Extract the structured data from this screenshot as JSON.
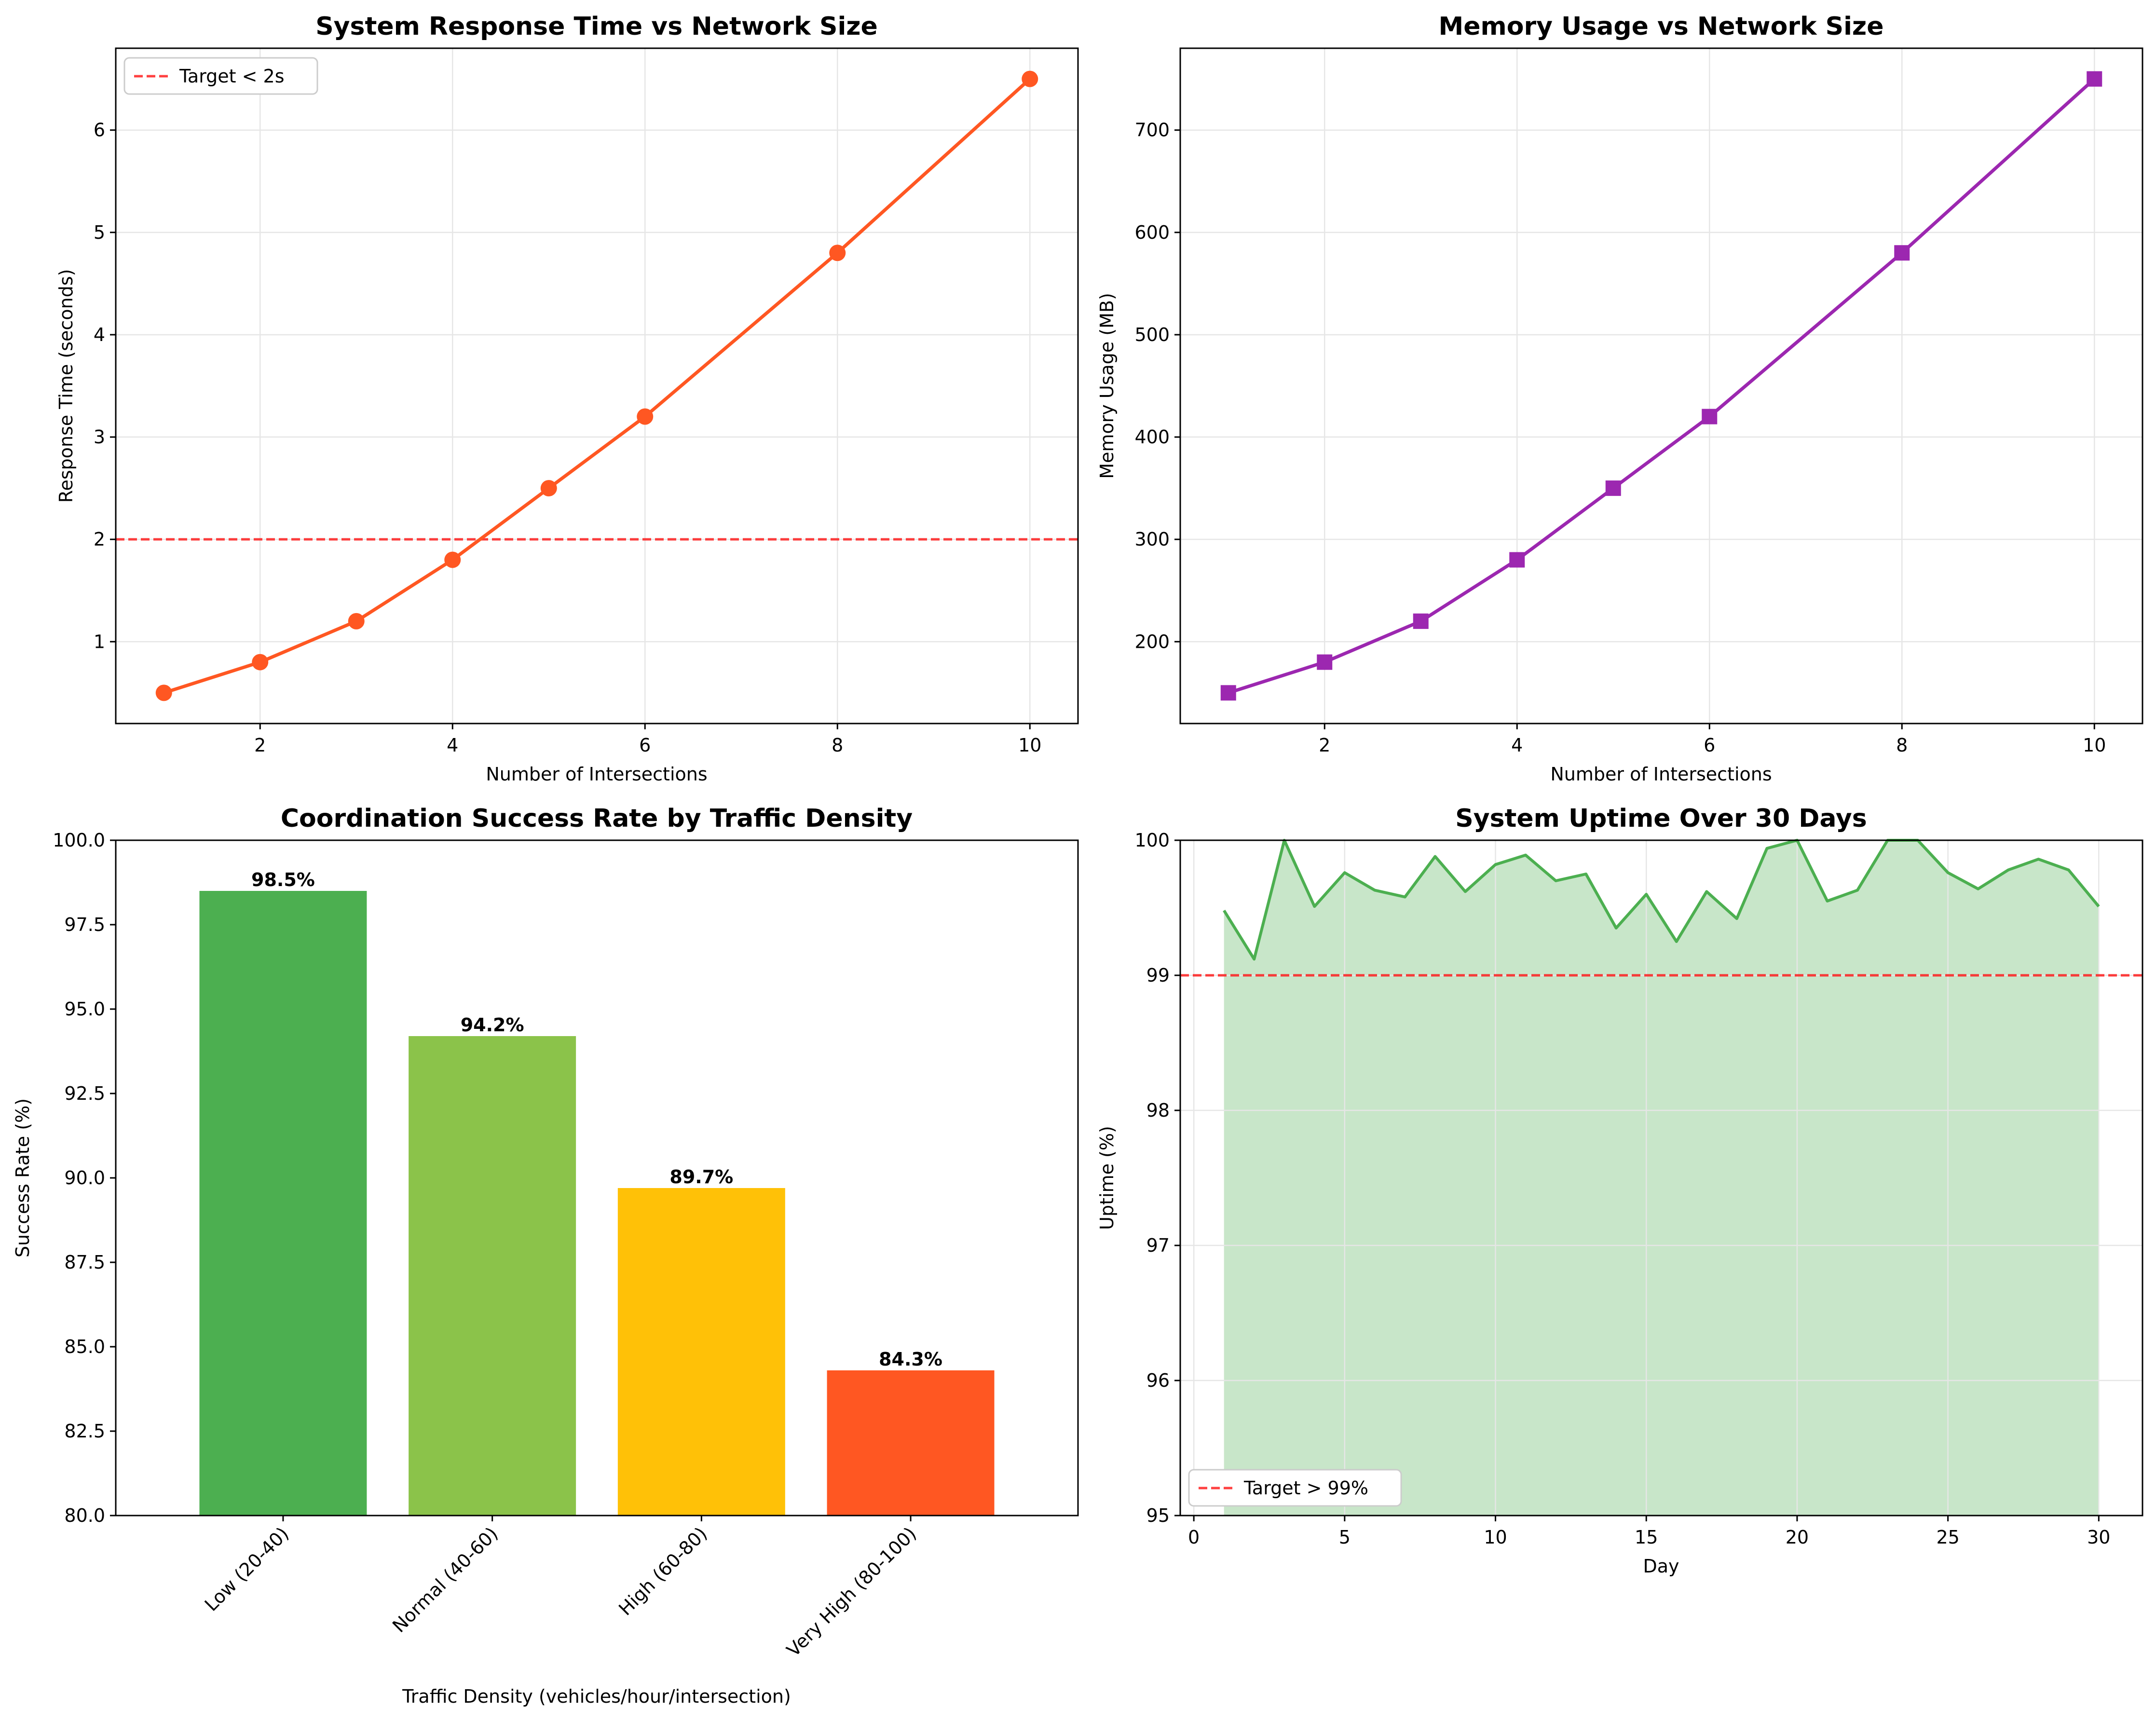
{
  "colors": {
    "response_line": "#FF5722",
    "memory_line": "#9C27B0",
    "target_line": "#FF0000",
    "uptime_line": "#4CAF50",
    "uptime_fill": "#C8E6C9",
    "bar_colors": [
      "#4CAF50",
      "#8BC34A",
      "#FFC107",
      "#FF5722"
    ],
    "grid": "#E6E6E6"
  },
  "chart_data": [
    {
      "id": "response",
      "type": "line",
      "title": "System Response Time vs Network Size",
      "xlabel": "Number of Intersections",
      "ylabel": "Response Time (seconds)",
      "x": [
        1,
        2,
        3,
        4,
        5,
        6,
        8,
        10
      ],
      "series": [
        {
          "values": [
            0.5,
            0.8,
            1.2,
            1.8,
            2.5,
            3.2,
            4.8,
            6.5
          ],
          "marker": "circle"
        }
      ],
      "xlim": [
        0.5,
        10.5
      ],
      "ylim": [
        0.2,
        6.8
      ],
      "xticks": [
        2,
        4,
        6,
        8,
        10
      ],
      "yticks": [
        1,
        2,
        3,
        4,
        5,
        6
      ],
      "reference_line": {
        "y": 2,
        "label": "Target < 2s",
        "style": "dashed"
      },
      "legend": "upper-left",
      "grid": true
    },
    {
      "id": "memory",
      "type": "line",
      "title": "Memory Usage vs Network Size",
      "xlabel": "Number of Intersections",
      "ylabel": "Memory Usage (MB)",
      "x": [
        1,
        2,
        3,
        4,
        5,
        6,
        8,
        10
      ],
      "series": [
        {
          "values": [
            150,
            180,
            220,
            280,
            350,
            420,
            580,
            750
          ],
          "marker": "square"
        }
      ],
      "xlim": [
        0.5,
        10.5
      ],
      "ylim": [
        120,
        780
      ],
      "xticks": [
        2,
        4,
        6,
        8,
        10
      ],
      "yticks": [
        200,
        300,
        400,
        500,
        600,
        700
      ],
      "grid": true
    },
    {
      "id": "success",
      "type": "bar",
      "title": "Coordination Success Rate by Traffic Density",
      "xlabel": "Traffic Density (vehicles/hour/intersection)",
      "ylabel": "Success Rate (%)",
      "categories": [
        "Low (20-40)",
        "Normal (40-60)",
        "High (60-80)",
        "Very High (80-100)"
      ],
      "values": [
        98.5,
        94.2,
        89.7,
        84.3
      ],
      "data_labels": [
        "98.5%",
        "94.2%",
        "89.7%",
        "84.3%"
      ],
      "ylim": [
        80,
        100
      ],
      "yticks": [
        80.0,
        82.5,
        85.0,
        87.5,
        90.0,
        92.5,
        95.0,
        97.5,
        100.0
      ],
      "ytick_labels": [
        "80.0",
        "82.5",
        "85.0",
        "87.5",
        "90.0",
        "92.5",
        "95.0",
        "97.5",
        "100.0"
      ],
      "tick_rotation": 45,
      "grid": false
    },
    {
      "id": "uptime",
      "type": "area",
      "title": "System Uptime Over 30 Days",
      "xlabel": "Day",
      "ylabel": "Uptime (%)",
      "x": [
        1,
        2,
        3,
        4,
        5,
        6,
        7,
        8,
        9,
        10,
        11,
        12,
        13,
        14,
        15,
        16,
        17,
        18,
        19,
        20,
        21,
        22,
        23,
        24,
        25,
        26,
        27,
        28,
        29,
        30
      ],
      "series": [
        {
          "values": [
            99.48,
            99.12,
            100.0,
            99.51,
            99.76,
            99.63,
            99.58,
            99.88,
            99.62,
            99.82,
            99.89,
            99.7,
            99.75,
            99.35,
            99.6,
            99.25,
            99.62,
            99.42,
            99.94,
            100.0,
            99.55,
            99.63,
            100.0,
            100.0,
            99.76,
            99.64,
            99.78,
            99.86,
            99.78,
            99.51
          ]
        }
      ],
      "xlim": [
        -0.45,
        31.45
      ],
      "ylim": [
        95,
        100
      ],
      "xticks": [
        0,
        5,
        10,
        15,
        20,
        25,
        30
      ],
      "yticks": [
        95,
        96,
        97,
        98,
        99,
        100
      ],
      "reference_line": {
        "y": 99,
        "label": "Target > 99%",
        "style": "dashed"
      },
      "legend": "lower-left",
      "grid": true
    }
  ]
}
